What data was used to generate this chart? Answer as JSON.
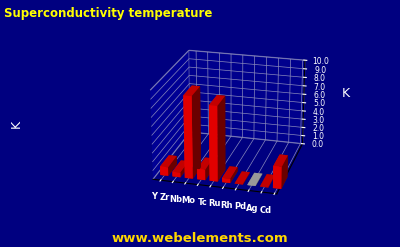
{
  "elements": [
    "Y",
    "Zr",
    "Nb",
    "Mo",
    "Tc",
    "Ru",
    "Rh",
    "Pd",
    "Ag",
    "Cd"
  ],
  "values": [
    1.0,
    0.55,
    9.3,
    1.2,
    8.5,
    0.49,
    0.001,
    0.0,
    0.001,
    2.5
  ],
  "title": "Superconductivity temperature",
  "ylabel": "K",
  "ylim": [
    0.0,
    10.0
  ],
  "yticks": [
    0.0,
    1.0,
    2.0,
    3.0,
    4.0,
    5.0,
    6.0,
    7.0,
    8.0,
    9.0,
    10.0
  ],
  "background_color": "#000080",
  "bar_color": "#FF0000",
  "special_bar_index": 7,
  "special_bar_color": "#C8C8C8",
  "website": "www.webelements.com",
  "title_color": "#FFFF00",
  "axis_color": "#FFFFFF",
  "website_color": "#FFD700",
  "floor_color": "#0000CD",
  "grid_color": "#8888BB",
  "elev": 22,
  "azim": -75
}
